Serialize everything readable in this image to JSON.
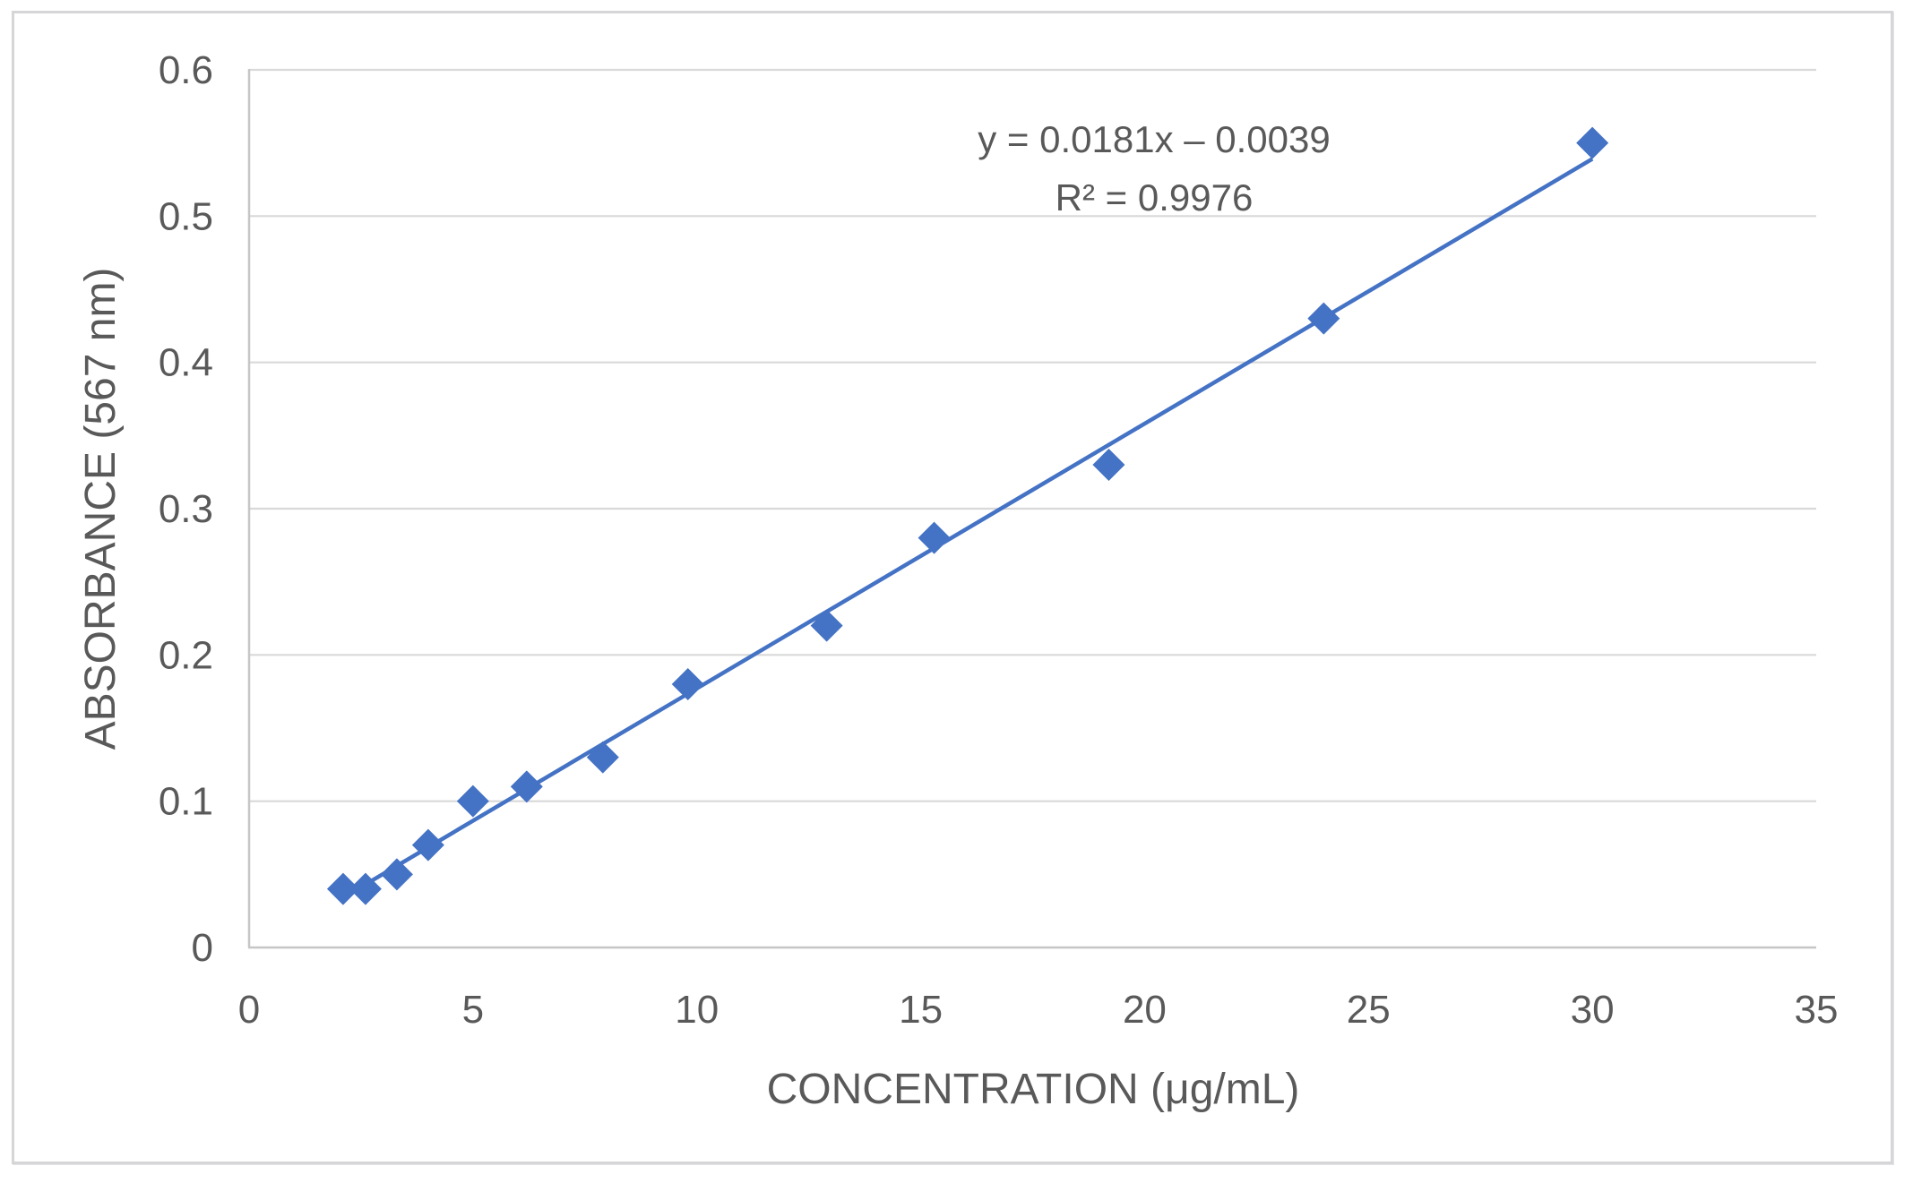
{
  "chart_data": {
    "type": "scatter",
    "title": "",
    "xlabel": "CONCENTRATION (μg/mL)",
    "ylabel": "ABSORBANCE (567 nm)",
    "xlim": [
      0,
      35
    ],
    "ylim": [
      0,
      0.6
    ],
    "x_ticks": [
      0,
      5,
      10,
      15,
      20,
      25,
      30,
      35
    ],
    "x_tick_labels": [
      "0",
      "5",
      "10",
      "15",
      "20",
      "25",
      "30",
      "35"
    ],
    "y_ticks": [
      0,
      0.1,
      0.2,
      0.3,
      0.4,
      0.5,
      0.6
    ],
    "y_tick_labels": [
      "0",
      "0.1",
      "0.2",
      "0.3",
      "0.4",
      "0.5",
      "0.6"
    ],
    "grid": "horizontal-only",
    "legend": "none",
    "series": [
      {
        "name": "absorbance-calibration-points",
        "marker": "diamond",
        "color": "#4472C4",
        "points": [
          [
            2.1,
            0.04
          ],
          [
            2.6,
            0.04
          ],
          [
            3.3,
            0.05
          ],
          [
            4.0,
            0.07
          ],
          [
            5.0,
            0.1
          ],
          [
            6.2,
            0.11
          ],
          [
            7.9,
            0.13
          ],
          [
            9.8,
            0.18
          ],
          [
            12.9,
            0.22
          ],
          [
            15.3,
            0.28
          ],
          [
            19.2,
            0.33
          ],
          [
            24.0,
            0.43
          ],
          [
            30.0,
            0.55
          ]
        ]
      }
    ],
    "trendline": {
      "type": "linear",
      "slope": 0.0181,
      "intercept": -0.0039,
      "x_start": 2.1,
      "x_end": 30,
      "color": "#4472C4"
    },
    "annotation": {
      "equation": "y = 0.0181x – 0.0039",
      "r_squared": "R² = 0.9976"
    }
  },
  "colors": {
    "marker": "#4472C4",
    "trendline": "#4472C4",
    "gridline": "#D9D9D9",
    "axis_line": "#C6C6C6",
    "text": "#595959",
    "frame_border": "#D6D6D9",
    "background": "#FFFFFF"
  }
}
